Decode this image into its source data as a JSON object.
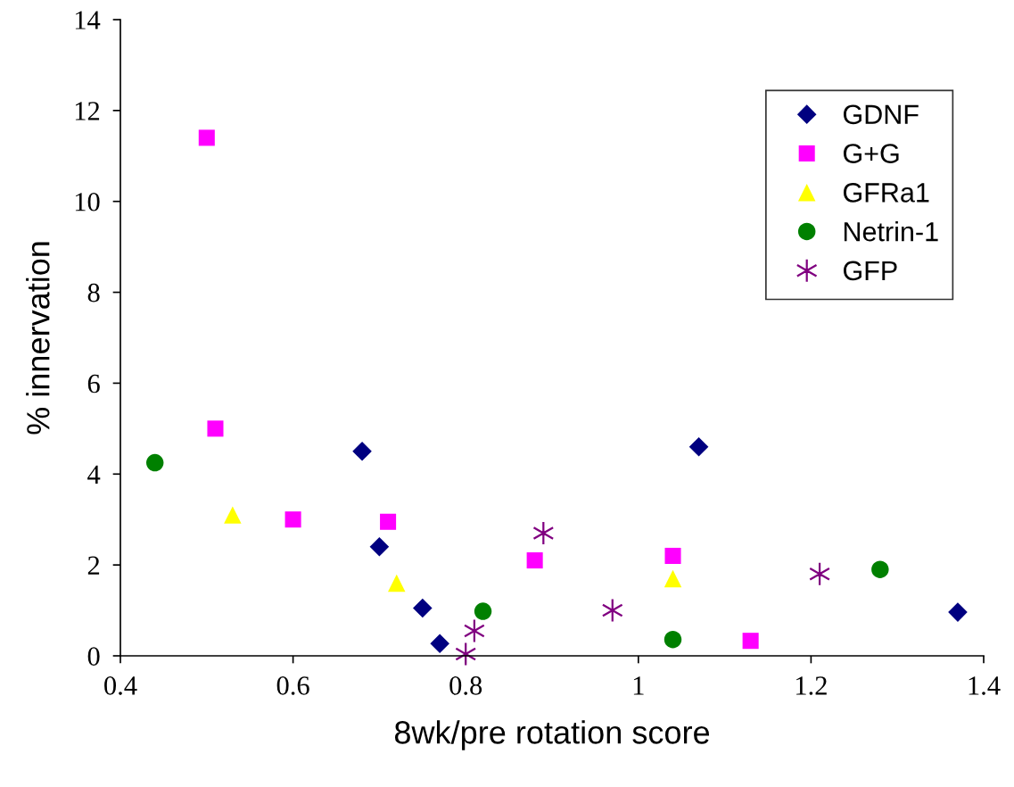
{
  "chart_data": {
    "type": "scatter",
    "xlabel": "8wk/pre rotation score",
    "ylabel": "% innervation",
    "xlim": [
      0.4,
      1.4
    ],
    "xticks": [
      {
        "value": 0.4,
        "label": "0.4"
      },
      {
        "value": 0.6,
        "label": "0.6"
      },
      {
        "value": 0.8,
        "label": "0.8"
      },
      {
        "value": 1,
        "label": "1"
      },
      {
        "value": 1.2,
        "label": "1.2"
      },
      {
        "value": 1.4,
        "label": "1.4"
      }
    ],
    "ylim": [
      0,
      14
    ],
    "yticks": [
      0,
      2,
      4,
      6,
      8,
      10,
      12,
      14
    ],
    "grid": false,
    "legend": "top right",
    "series": [
      {
        "name": "GDNF",
        "color": "#000080",
        "marker": "diamond",
        "x": [
          0.68,
          0.7,
          0.75,
          0.77,
          1.07,
          1.37
        ],
        "values": [
          4.5,
          2.4,
          1.05,
          0.27,
          4.6,
          0.96
        ]
      },
      {
        "name": "G+G",
        "color": "#ff00ff",
        "marker": "square",
        "x": [
          0.5,
          0.51,
          0.6,
          0.71,
          0.88,
          1.04,
          1.13
        ],
        "values": [
          11.4,
          5.0,
          3.0,
          2.95,
          2.1,
          2.2,
          0.33
        ]
      },
      {
        "name": "GFRa1",
        "color": "#ffff00",
        "marker": "triangle",
        "x": [
          0.53,
          0.72,
          1.04
        ],
        "values": [
          3.1,
          1.6,
          1.7
        ]
      },
      {
        "name": "Netrin-1",
        "color": "#008000",
        "marker": "circle",
        "x": [
          0.44,
          0.82,
          1.04,
          1.28
        ],
        "values": [
          4.25,
          0.98,
          0.36,
          1.9
        ]
      },
      {
        "name": "GFP",
        "color": "#800080",
        "marker": "cross",
        "x": [
          0.8,
          0.81,
          0.89,
          0.97,
          1.21
        ],
        "values": [
          0.04,
          0.55,
          2.7,
          1.0,
          1.8
        ]
      }
    ]
  }
}
